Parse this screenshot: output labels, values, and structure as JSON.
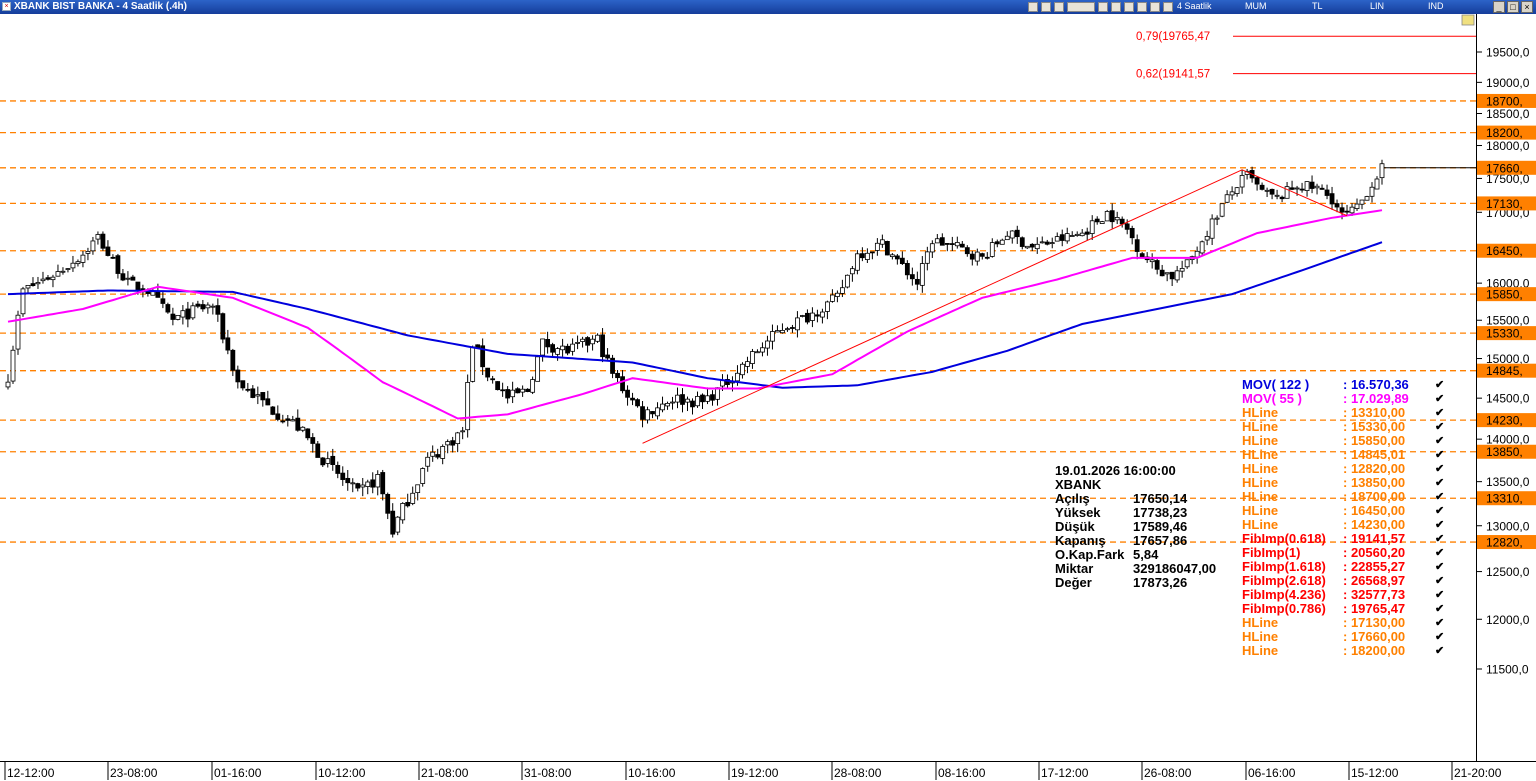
{
  "window": {
    "title": "XBANK BIST BANKA - 4 Saatlik (.4h)",
    "toolbar_labels": [
      "4 Saatlik",
      "MUM",
      "TL",
      "LIN",
      "IND"
    ]
  },
  "colors": {
    "candle_up": "#ffffff",
    "candle_down": "#000000",
    "mov122": "#0000dd",
    "mov55": "#ff00ff",
    "hline": "#ff8000",
    "fib": "#ff0000",
    "trend": "#ff0000"
  },
  "chart_data": {
    "type": "candlestick",
    "y_axis": {
      "side": "right",
      "min": 11000,
      "max": 20400,
      "scale": "log",
      "ticks": [
        "19500,0",
        "19000,0",
        "18500,0",
        "18000,0",
        "17500,0",
        "17000,0",
        "16000,0",
        "15500,0",
        "15000,0",
        "14500,0",
        "14000,0",
        "13500,0",
        "13000,0",
        "12500,0",
        "12000,0",
        "11500,0"
      ],
      "tick_values": [
        19500,
        19000,
        18500,
        18000,
        17500,
        17000,
        16000,
        15500,
        15000,
        14500,
        14000,
        13500,
        13000,
        12500,
        12000,
        11500
      ]
    },
    "x_axis": {
      "labels": [
        "12-12:00",
        "23-08:00",
        "01-16:00",
        "10-12:00",
        "21-08:00",
        "31-08:00",
        "10-16:00",
        "19-12:00",
        "28-08:00",
        "08-16:00",
        "17-12:00",
        "26-08:00",
        "06-16:00",
        "15-12:00",
        "21-20:00"
      ]
    },
    "hlines": [
      {
        "value": 18700,
        "label": "18700,"
      },
      {
        "value": 18200,
        "label": "18200,"
      },
      {
        "value": 17660,
        "label": "17660,"
      },
      {
        "value": 17130,
        "label": "17130,"
      },
      {
        "value": 16450,
        "label": "16450,"
      },
      {
        "value": 15850,
        "label": "15850,"
      },
      {
        "value": 15330,
        "label": "15330,"
      },
      {
        "value": 14845,
        "label": "14845,"
      },
      {
        "value": 14230,
        "label": "14230,"
      },
      {
        "value": 13850,
        "label": "13850,"
      },
      {
        "value": 13310,
        "label": "13310,"
      },
      {
        "value": 12820,
        "label": "12820,"
      }
    ],
    "fib_levels": [
      {
        "value": 19765.47,
        "label": "0,79(19765,47"
      },
      {
        "value": 19141.57,
        "label": "0,62(19141,57"
      }
    ],
    "close_line": 17660,
    "anchors": [
      {
        "i": 0,
        "v": 14780
      },
      {
        "i": 3,
        "v": 15900
      },
      {
        "i": 10,
        "v": 16150
      },
      {
        "i": 15,
        "v": 16400
      },
      {
        "i": 18,
        "v": 16650
      },
      {
        "i": 20,
        "v": 16400
      },
      {
        "i": 24,
        "v": 16000
      },
      {
        "i": 28,
        "v": 15900
      },
      {
        "i": 33,
        "v": 15500
      },
      {
        "i": 38,
        "v": 15650
      },
      {
        "i": 41,
        "v": 15700
      },
      {
        "i": 46,
        "v": 14700
      },
      {
        "i": 52,
        "v": 14400
      },
      {
        "i": 58,
        "v": 14150
      },
      {
        "i": 64,
        "v": 13700
      },
      {
        "i": 70,
        "v": 13350
      },
      {
        "i": 74,
        "v": 13550
      },
      {
        "i": 77,
        "v": 12950
      },
      {
        "i": 80,
        "v": 13300
      },
      {
        "i": 84,
        "v": 13750
      },
      {
        "i": 88,
        "v": 13950
      },
      {
        "i": 91,
        "v": 14100
      },
      {
        "i": 93,
        "v": 15200
      },
      {
        "i": 96,
        "v": 14800
      },
      {
        "i": 100,
        "v": 14500
      },
      {
        "i": 104,
        "v": 14600
      },
      {
        "i": 107,
        "v": 15200
      },
      {
        "i": 112,
        "v": 15100
      },
      {
        "i": 116,
        "v": 15200
      },
      {
        "i": 118,
        "v": 15250
      },
      {
        "i": 121,
        "v": 14800
      },
      {
        "i": 127,
        "v": 14300
      },
      {
        "i": 133,
        "v": 14500
      },
      {
        "i": 139,
        "v": 14450
      },
      {
        "i": 143,
        "v": 14650
      },
      {
        "i": 150,
        "v": 15100
      },
      {
        "i": 155,
        "v": 15400
      },
      {
        "i": 160,
        "v": 15550
      },
      {
        "i": 166,
        "v": 15800
      },
      {
        "i": 170,
        "v": 16400
      },
      {
        "i": 175,
        "v": 16550
      },
      {
        "i": 180,
        "v": 16150
      },
      {
        "i": 182,
        "v": 16000
      },
      {
        "i": 185,
        "v": 16600
      },
      {
        "i": 190,
        "v": 16500
      },
      {
        "i": 195,
        "v": 16350
      },
      {
        "i": 200,
        "v": 16700
      },
      {
        "i": 205,
        "v": 16500
      },
      {
        "i": 210,
        "v": 16600
      },
      {
        "i": 215,
        "v": 16700
      },
      {
        "i": 220,
        "v": 17000
      },
      {
        "i": 224,
        "v": 16750
      },
      {
        "i": 227,
        "v": 16400
      },
      {
        "i": 230,
        "v": 16200
      },
      {
        "i": 233,
        "v": 16100
      },
      {
        "i": 236,
        "v": 16250
      },
      {
        "i": 239,
        "v": 16600
      },
      {
        "i": 243,
        "v": 17100
      },
      {
        "i": 246,
        "v": 17400
      },
      {
        "i": 248,
        "v": 17550
      },
      {
        "i": 251,
        "v": 17300
      },
      {
        "i": 254,
        "v": 17200
      },
      {
        "i": 258,
        "v": 17400
      },
      {
        "i": 262,
        "v": 17350
      },
      {
        "i": 265,
        "v": 17200
      },
      {
        "i": 267,
        "v": 16950
      },
      {
        "i": 270,
        "v": 17050
      },
      {
        "i": 272,
        "v": 17300
      },
      {
        "i": 275,
        "v": 17658
      }
    ],
    "mov122_anchors": [
      {
        "i": 0,
        "v": 15850
      },
      {
        "i": 20,
        "v": 15900
      },
      {
        "i": 45,
        "v": 15880
      },
      {
        "i": 60,
        "v": 15650
      },
      {
        "i": 80,
        "v": 15300
      },
      {
        "i": 100,
        "v": 15060
      },
      {
        "i": 125,
        "v": 14950
      },
      {
        "i": 140,
        "v": 14750
      },
      {
        "i": 155,
        "v": 14630
      },
      {
        "i": 170,
        "v": 14660
      },
      {
        "i": 185,
        "v": 14830
      },
      {
        "i": 200,
        "v": 15100
      },
      {
        "i": 215,
        "v": 15450
      },
      {
        "i": 230,
        "v": 15650
      },
      {
        "i": 245,
        "v": 15850
      },
      {
        "i": 260,
        "v": 16200
      },
      {
        "i": 275,
        "v": 16570
      }
    ],
    "mov55_anchors": [
      {
        "i": 0,
        "v": 15480
      },
      {
        "i": 15,
        "v": 15650
      },
      {
        "i": 30,
        "v": 15950
      },
      {
        "i": 45,
        "v": 15800
      },
      {
        "i": 60,
        "v": 15400
      },
      {
        "i": 75,
        "v": 14700
      },
      {
        "i": 90,
        "v": 14250
      },
      {
        "i": 100,
        "v": 14300
      },
      {
        "i": 115,
        "v": 14550
      },
      {
        "i": 125,
        "v": 14750
      },
      {
        "i": 140,
        "v": 14620
      },
      {
        "i": 150,
        "v": 14620
      },
      {
        "i": 165,
        "v": 14800
      },
      {
        "i": 180,
        "v": 15350
      },
      {
        "i": 195,
        "v": 15800
      },
      {
        "i": 210,
        "v": 16050
      },
      {
        "i": 225,
        "v": 16350
      },
      {
        "i": 238,
        "v": 16350
      },
      {
        "i": 250,
        "v": 16700
      },
      {
        "i": 265,
        "v": 16920
      },
      {
        "i": 275,
        "v": 17030
      }
    ],
    "trendlines": [
      {
        "from": {
          "i": 127,
          "v": 13950
        },
        "to": {
          "i": 247,
          "v": 17630
        }
      },
      {
        "from": {
          "i": 247,
          "v": 17630
        },
        "to": {
          "i": 268,
          "v": 16950
        }
      }
    ],
    "info_box": {
      "date": "19.01.2026  16:00:00",
      "symbol": "XBANK",
      "rows": [
        {
          "label": "Açılış",
          "value": "17650,14"
        },
        {
          "label": "Yüksek",
          "value": "17738,23"
        },
        {
          "label": "Düşük",
          "value": "17589,46"
        },
        {
          "label": "Kapanış",
          "value": "17657,86"
        },
        {
          "label": "O.Kap.Fark",
          "value": "5,84"
        },
        {
          "label": "Miktar",
          "value": "329186047,00"
        },
        {
          "label": "Değer",
          "value": "17873,26"
        }
      ]
    },
    "legend": [
      {
        "name": "MOV( 122 )",
        "value": ": 16.570,36",
        "color": "#0000dd"
      },
      {
        "name": "MOV( 55 )",
        "value": ": 17.029,89",
        "color": "#ff00ff"
      },
      {
        "name": "HLine",
        "value": ": 13310,00",
        "color": "#ff8000"
      },
      {
        "name": "HLine",
        "value": ": 15330,00",
        "color": "#ff8000"
      },
      {
        "name": "HLine",
        "value": ": 15850,00",
        "color": "#ff8000"
      },
      {
        "name": "HLine",
        "value": ": 14845,01",
        "color": "#ff8000"
      },
      {
        "name": "HLine",
        "value": ": 12820,00",
        "color": "#ff8000"
      },
      {
        "name": "HLine",
        "value": ": 13850,00",
        "color": "#ff8000"
      },
      {
        "name": "HLine",
        "value": ": 18700,00",
        "color": "#ff8000"
      },
      {
        "name": "HLine",
        "value": ": 16450,00",
        "color": "#ff8000"
      },
      {
        "name": "HLine",
        "value": ": 14230,00",
        "color": "#ff8000"
      },
      {
        "name": "FibImp(0.618)",
        "value": ": 19141,57",
        "color": "#ff0000"
      },
      {
        "name": "FibImp(1)",
        "value": ": 20560,20",
        "color": "#ff0000"
      },
      {
        "name": "FibImp(1.618)",
        "value": ": 22855,27",
        "color": "#ff0000"
      },
      {
        "name": "FibImp(2.618)",
        "value": ": 26568,97",
        "color": "#ff0000"
      },
      {
        "name": "FibImp(4.236)",
        "value": ": 32577,73",
        "color": "#ff0000"
      },
      {
        "name": "FibImp(0.786)",
        "value": ": 19765,47",
        "color": "#ff0000"
      },
      {
        "name": "HLine",
        "value": ": 17130,00",
        "color": "#ff8000"
      },
      {
        "name": "HLine",
        "value": ": 17660,00",
        "color": "#ff8000"
      },
      {
        "name": "HLine",
        "value": ": 18200,00",
        "color": "#ff8000"
      }
    ]
  }
}
